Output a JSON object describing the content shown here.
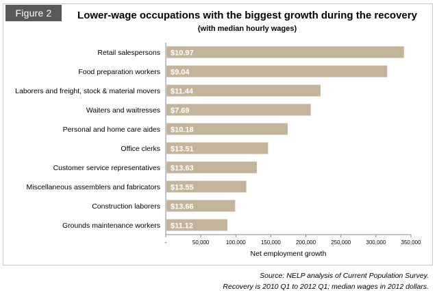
{
  "badge": "Figure 2",
  "title": "Lower-wage occupations with the biggest growth during the recovery",
  "subtitle": "(with median hourly wages)",
  "source_line1": "Source: NELP analysis of Current Population Survey.",
  "source_line2": "Recovery is 2010 Q1 to 2012 Q1; median wages in 2012 dollars.",
  "colors": {
    "bar": "#c4b49c",
    "axis": "#888888",
    "badge": "#595959"
  },
  "chart_data": {
    "type": "bar",
    "orientation": "horizontal",
    "title": "Lower-wage occupations with the biggest growth during the recovery",
    "subtitle": "(with median hourly wages)",
    "xlabel": "Net employment growth",
    "ylabel": "",
    "xlim": [
      0,
      350000
    ],
    "xticks": [
      0,
      50000,
      100000,
      150000,
      200000,
      250000,
      300000,
      350000
    ],
    "xtick_labels": [
      "-",
      "50,000",
      "100,000",
      "150,000",
      "200,000",
      "250,000",
      "300,000",
      "350,000"
    ],
    "grid": false,
    "legend": "none",
    "categories": [
      "Retail salespersons",
      "Food preparation workers",
      "Laborers and freight, stock & material movers",
      "Waiters and waitresses",
      "Personal and home care aides",
      "Office clerks",
      "Customer service representatives",
      "Miscellaneous assemblers and fabricators",
      "Construction laborers",
      "Grounds maintenance workers"
    ],
    "values": [
      340000,
      316000,
      221000,
      207000,
      174000,
      146000,
      130000,
      115000,
      99000,
      88000
    ],
    "bar_labels": [
      "$10.97",
      "$9.04",
      "$11.44",
      "$7.69",
      "$10.18",
      "$13.51",
      "$13.63",
      "$13.55",
      "$13.66",
      "$11.12"
    ]
  }
}
